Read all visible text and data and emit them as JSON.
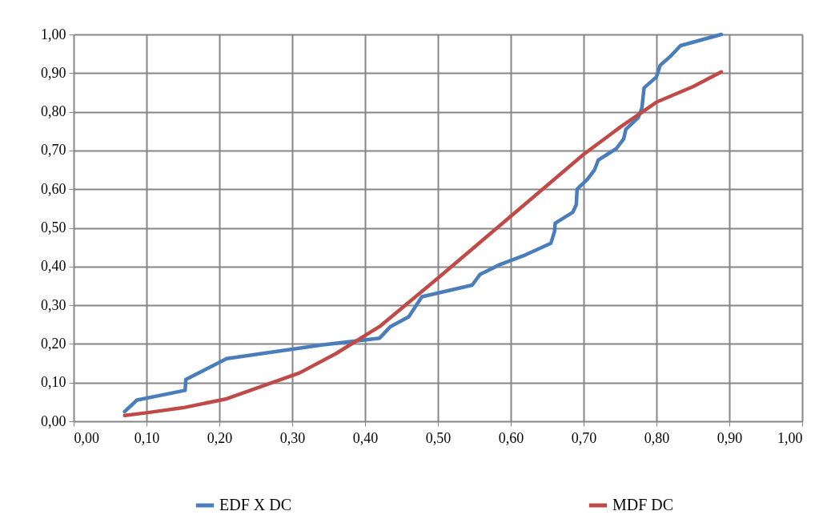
{
  "chart_data": {
    "type": "line",
    "grid": true,
    "legend": "bottom",
    "marker": "none",
    "line_style": "solid",
    "xlim": [
      0,
      1
    ],
    "ylim": [
      0,
      1
    ],
    "xticks": [
      {
        "value": 0,
        "label": "0,00"
      },
      {
        "value": 0.1,
        "label": "0,10"
      },
      {
        "value": 0.2,
        "label": "0,20"
      },
      {
        "value": 0.3,
        "label": "0,30"
      },
      {
        "value": 0.4,
        "label": "0,40"
      },
      {
        "value": 0.5,
        "label": "0,50"
      },
      {
        "value": 0.6,
        "label": "0,60"
      },
      {
        "value": 0.7,
        "label": "0,70"
      },
      {
        "value": 0.8,
        "label": "0,80"
      },
      {
        "value": 0.9,
        "label": "0,90"
      },
      {
        "value": 1,
        "label": "1,00"
      }
    ],
    "yticks": [
      {
        "value": 0,
        "label": "0,00"
      },
      {
        "value": 0.1,
        "label": "0,10"
      },
      {
        "value": 0.2,
        "label": "0,20"
      },
      {
        "value": 0.3,
        "label": "0,30"
      },
      {
        "value": 0.4,
        "label": "0,40"
      },
      {
        "value": 0.5,
        "label": "0,50"
      },
      {
        "value": 0.6,
        "label": "0,60"
      },
      {
        "value": 0.7,
        "label": "0,70"
      },
      {
        "value": 0.8,
        "label": "0,80"
      },
      {
        "value": 0.9,
        "label": "0,90"
      },
      {
        "value": 1,
        "label": "1,00"
      }
    ],
    "series": [
      {
        "name": "EDF X DC",
        "color": "#4a7ebb",
        "x": [
          0.07,
          0.087,
          0.153,
          0.154,
          0.18,
          0.21,
          0.34,
          0.42,
          0.435,
          0.46,
          0.478,
          0.547,
          0.558,
          0.585,
          0.62,
          0.655,
          0.66,
          0.661,
          0.685,
          0.69,
          0.691,
          0.705,
          0.715,
          0.72,
          0.745,
          0.755,
          0.758,
          0.775,
          0.78,
          0.783,
          0.8,
          0.805,
          0.82,
          0.833,
          0.889
        ],
        "values": [
          0.025,
          0.055,
          0.08,
          0.108,
          0.133,
          0.162,
          0.197,
          0.215,
          0.245,
          0.27,
          0.322,
          0.352,
          0.38,
          0.405,
          0.43,
          0.46,
          0.49,
          0.512,
          0.54,
          0.56,
          0.6,
          0.625,
          0.65,
          0.675,
          0.705,
          0.73,
          0.755,
          0.785,
          0.81,
          0.862,
          0.89,
          0.92,
          0.945,
          0.971,
          1.0
        ]
      },
      {
        "name": "MDF DC",
        "color": "#be4b48",
        "x": [
          0.07,
          0.1,
          0.15,
          0.21,
          0.31,
          0.36,
          0.42,
          0.5,
          0.6,
          0.7,
          0.75,
          0.8,
          0.85,
          0.889
        ],
        "values": [
          0.015,
          0.022,
          0.035,
          0.058,
          0.125,
          0.175,
          0.245,
          0.37,
          0.53,
          0.69,
          0.76,
          0.825,
          0.865,
          0.903
        ]
      }
    ]
  }
}
